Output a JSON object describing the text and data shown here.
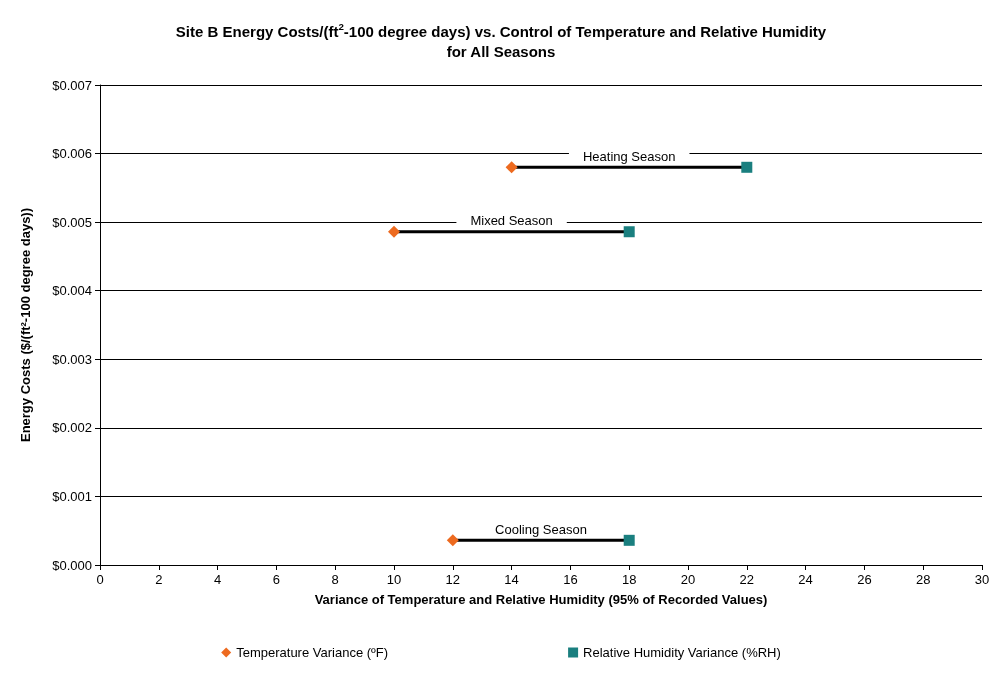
{
  "chart_data": {
    "type": "scatter",
    "title": "Site B Energy Costs/(ft$^{2}$-100 degree days) vs. Control of Temperature and Relative Humidity\nfor All Seasons",
    "xlabel": "Variance of Temperature and Relative Humidity (95% of Recorded Values)",
    "ylabel": "Energy Costs ($/(ft²-100 degree days))",
    "xlim": [
      0,
      30
    ],
    "xticks": [
      0,
      2,
      4,
      6,
      8,
      10,
      12,
      14,
      16,
      18,
      20,
      22,
      24,
      26,
      28,
      30
    ],
    "ylim": [
      0,
      0.007
    ],
    "yticks": [
      {
        "value": 0,
        "label": "$0.000"
      },
      {
        "value": 0.001,
        "label": "$0.001"
      },
      {
        "value": 0.002,
        "label": "$0.002"
      },
      {
        "value": 0.003,
        "label": "$0.003"
      },
      {
        "value": 0.004,
        "label": "$0.004"
      },
      {
        "value": 0.005,
        "label": "$0.005"
      },
      {
        "value": 0.006,
        "label": "$0.006"
      },
      {
        "value": 0.007,
        "label": "$0.007"
      }
    ],
    "grid": "y",
    "legend": "bottom",
    "series": [
      {
        "type": "line",
        "color": "#000000",
        "marker": "none",
        "x": [
          14,
          22
        ],
        "values": [
          0.0058,
          0.0058
        ]
      },
      {
        "type": "line",
        "color": "#000000",
        "marker": "none",
        "x": [
          10,
          18
        ],
        "values": [
          0.00486,
          0.00486
        ]
      },
      {
        "type": "line",
        "color": "#000000",
        "marker": "none",
        "x": [
          12,
          18
        ],
        "values": [
          0.00036,
          0.00036
        ]
      },
      {
        "name": "Temperature Variance (ºF)",
        "color": "#ed6a1f",
        "marker": "diamond",
        "x": [
          14,
          10,
          12
        ],
        "values": [
          0.0058,
          0.00486,
          0.00036
        ]
      },
      {
        "name": "Relative Humidity Variance (%RH)",
        "color": "#1a7f7f",
        "marker": "square",
        "x": [
          22,
          18,
          18
        ],
        "values": [
          0.0058,
          0.00486,
          0.00036
        ]
      }
    ],
    "annotations": [
      {
        "text": "Heating Season",
        "x": 18,
        "y": 0.0058
      },
      {
        "text": "Mixed Season",
        "x": 14,
        "y": 0.00486
      },
      {
        "text": "Cooling Season",
        "x": 15,
        "y": 0.00036
      }
    ]
  }
}
